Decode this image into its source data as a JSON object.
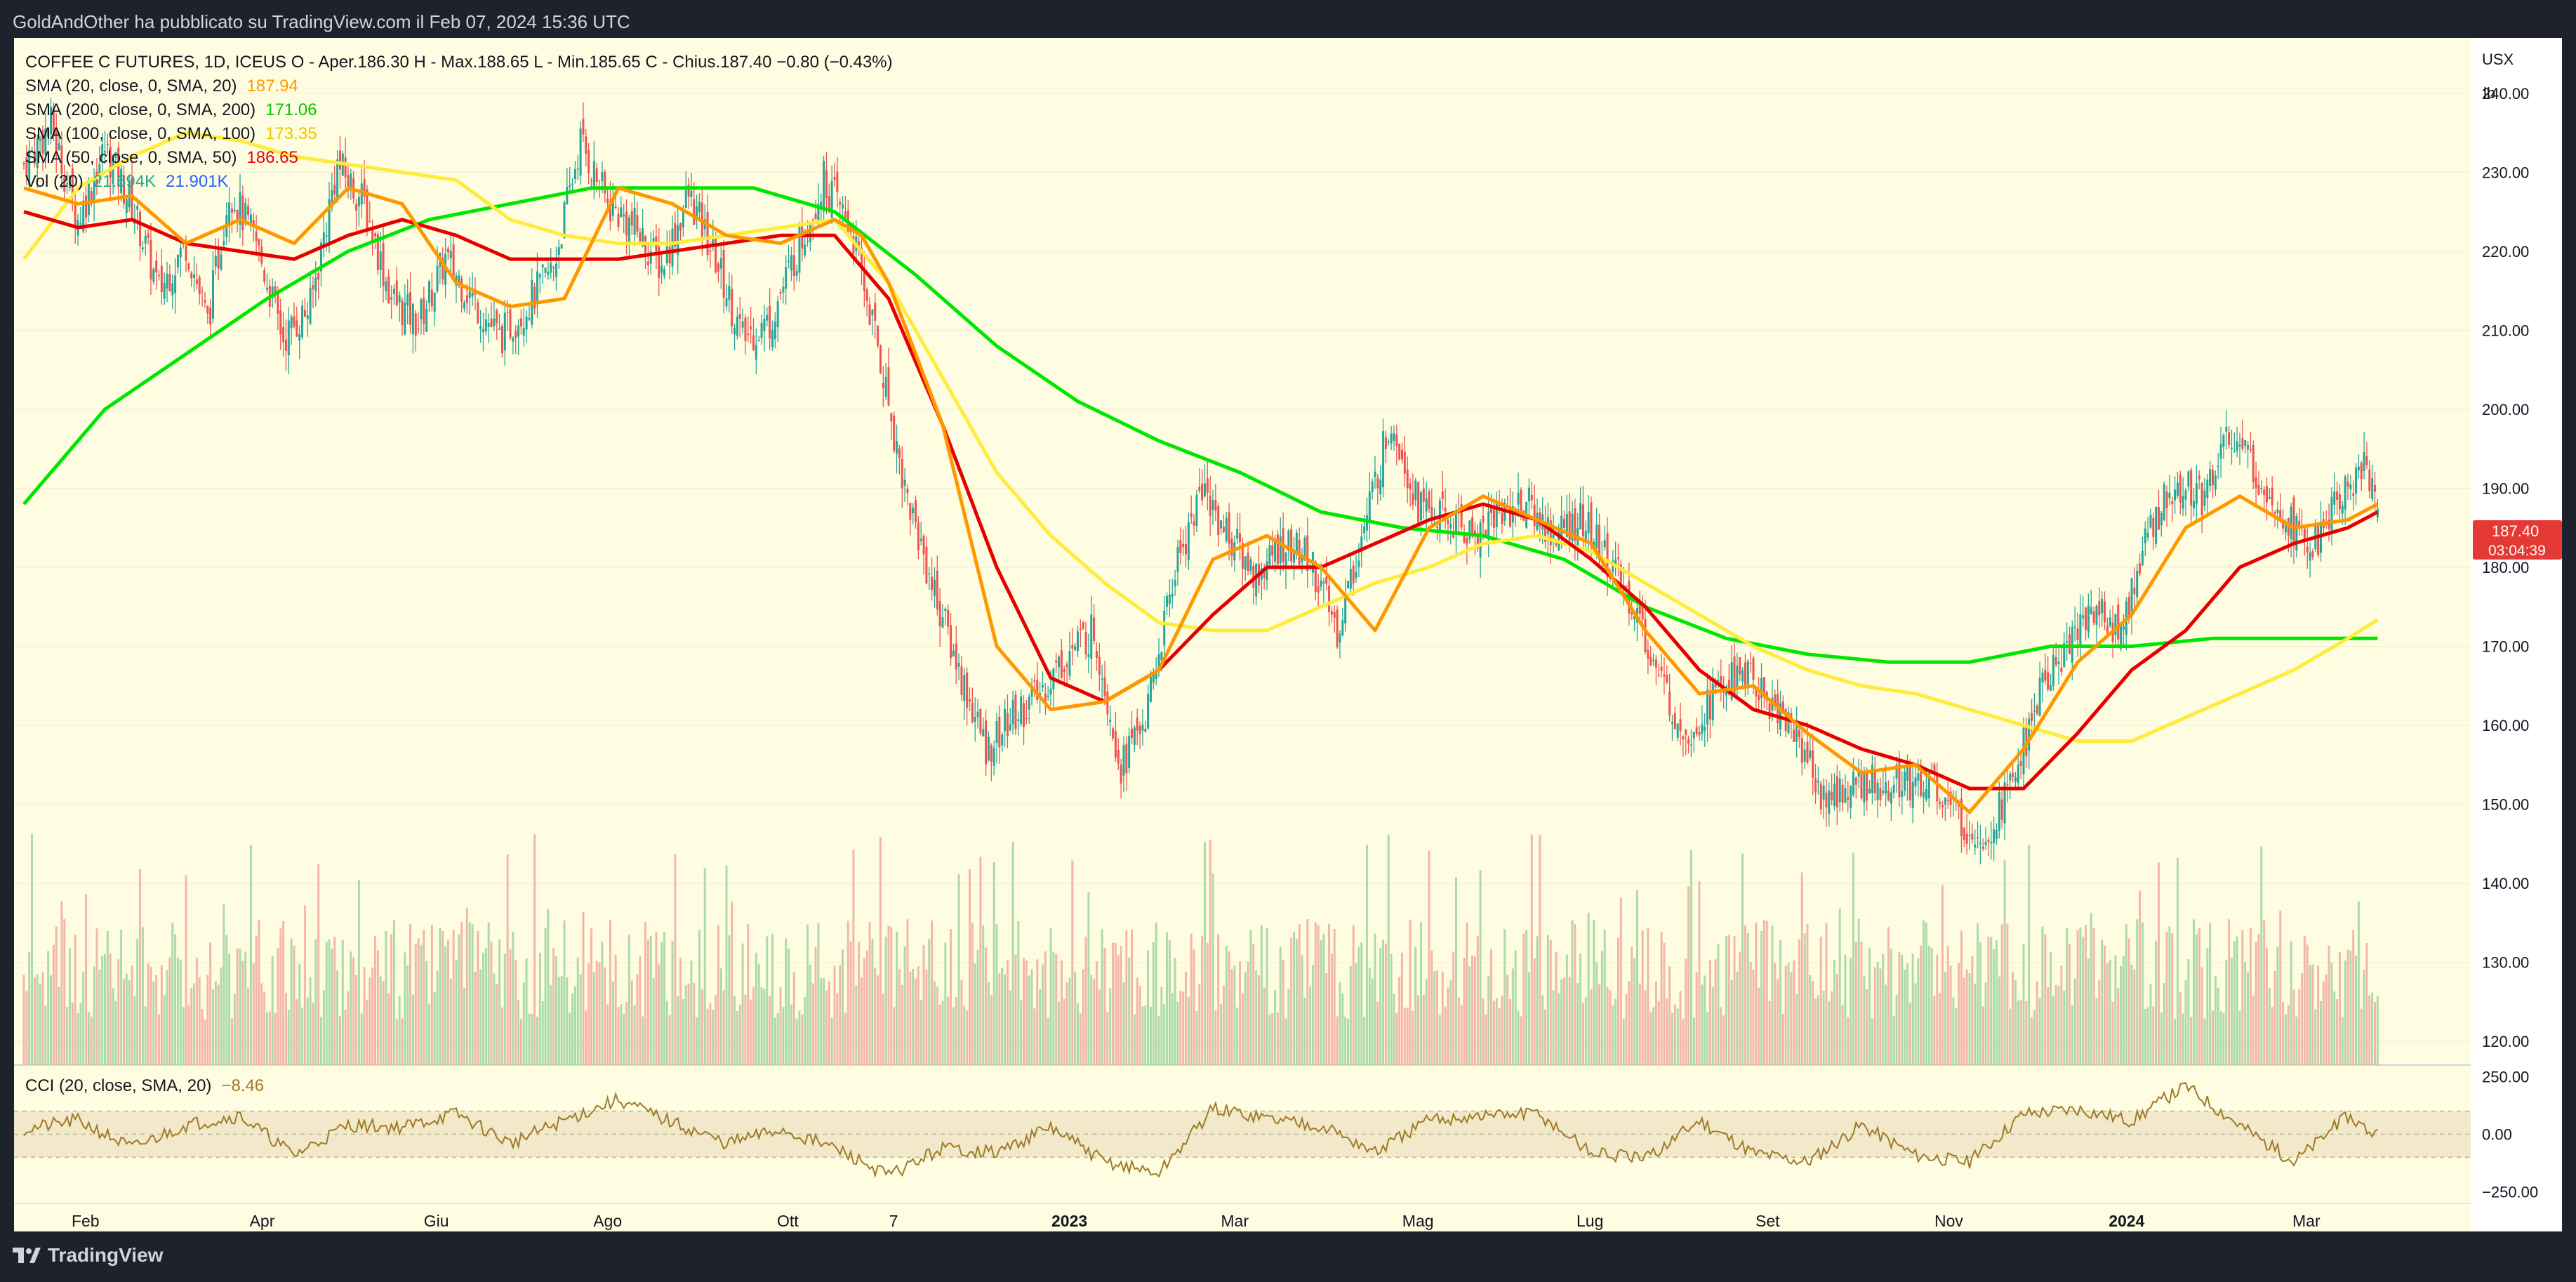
{
  "header": {
    "publish_line": "GoldAndOther ha pubblicato su TradingView.com il Feb 07, 2024 15:36 UTC"
  },
  "legend": {
    "symbol_line": "COFFEE C FUTURES, 1D, ICEUS  O - Aper.186.30  H - Max.188.65  L - Min.185.65  C - Chius.187.40  −0.80 (−0.43%)",
    "sma20": {
      "label": "SMA (20, close, 0, SMA, 20)",
      "value": "187.94",
      "color": "#ff9800"
    },
    "sma200": {
      "label": "SMA (200, close, 0, SMA, 200)",
      "value": "171.06",
      "color": "#00e600"
    },
    "sma100": {
      "label": "SMA (100, close, 0, SMA, 100)",
      "value": "173.35",
      "color": "#ffeb3b"
    },
    "sma50": {
      "label": "SMA (50, close, 0, SMA, 50)",
      "value": "186.65",
      "color": "#e60000"
    },
    "vol": {
      "label": "Vol (20)",
      "value1": "21.694K",
      "value2": "21.901K"
    }
  },
  "currency": {
    "unit": "USX",
    "sub": "lb"
  },
  "last_price": {
    "value": "187.40",
    "countdown": "03:04:39"
  },
  "cci_legend": {
    "label": "CCI (20, close, SMA, 20)",
    "value": "−8.46"
  },
  "footer": {
    "brand": "TradingView"
  },
  "chart_data": {
    "type": "candlestick",
    "instrument": "COFFEE C FUTURES",
    "interval": "1D",
    "exchange": "ICEUS",
    "price_ticks": [
      "240.00",
      "230.00",
      "220.00",
      "210.00",
      "200.00",
      "190.00",
      "180.00",
      "170.00",
      "160.00",
      "150.00",
      "140.00",
      "130.00",
      "120.00"
    ],
    "cci_ticks": [
      "250.00",
      "0.00",
      "−250.00"
    ],
    "x_tick_labels": [
      "Feb",
      "Apr",
      "Giu",
      "Ago",
      "Ott",
      "7",
      "2023",
      "Mar",
      "Mag",
      "Lug",
      "Set",
      "Nov",
      "2024",
      "Mar"
    ],
    "price_range": [
      117,
      247
    ],
    "cci_range": [
      -300,
      300
    ],
    "ohlc_last": {
      "open": 186.3,
      "high": 188.65,
      "low": 185.65,
      "close": 187.4,
      "change": -0.8,
      "change_pct": -0.43
    },
    "close_path_anchors": [
      [
        0,
        231
      ],
      [
        10,
        236
      ],
      [
        20,
        224
      ],
      [
        30,
        233
      ],
      [
        40,
        226
      ],
      [
        50,
        215
      ],
      [
        60,
        221
      ],
      [
        68,
        211
      ],
      [
        76,
        228
      ],
      [
        86,
        221
      ],
      [
        96,
        209
      ],
      [
        106,
        213
      ],
      [
        116,
        231
      ],
      [
        126,
        226
      ],
      [
        136,
        214
      ],
      [
        146,
        211
      ],
      [
        156,
        219
      ],
      [
        166,
        214
      ],
      [
        176,
        209
      ],
      [
        186,
        213
      ],
      [
        196,
        218
      ],
      [
        206,
        234
      ],
      [
        216,
        226
      ],
      [
        226,
        223
      ],
      [
        236,
        218
      ],
      [
        246,
        227
      ],
      [
        256,
        219
      ],
      [
        266,
        209
      ],
      [
        276,
        211
      ],
      [
        286,
        220
      ],
      [
        296,
        229
      ],
      [
        306,
        223
      ],
      [
        316,
        208
      ],
      [
        326,
        190
      ],
      [
        336,
        178
      ],
      [
        346,
        167
      ],
      [
        356,
        157
      ],
      [
        366,
        161
      ],
      [
        376,
        164
      ],
      [
        386,
        169
      ],
      [
        396,
        172
      ],
      [
        406,
        155
      ],
      [
        416,
        162
      ],
      [
        426,
        180
      ],
      [
        436,
        190
      ],
      [
        446,
        184
      ],
      [
        456,
        179
      ],
      [
        466,
        183
      ],
      [
        476,
        181
      ],
      [
        486,
        172
      ],
      [
        496,
        185
      ],
      [
        506,
        199
      ],
      [
        516,
        188
      ],
      [
        526,
        186
      ],
      [
        536,
        184
      ],
      [
        546,
        187
      ],
      [
        556,
        188
      ],
      [
        566,
        184
      ],
      [
        576,
        186
      ],
      [
        586,
        181
      ],
      [
        596,
        175
      ],
      [
        606,
        165
      ],
      [
        616,
        159
      ],
      [
        626,
        164
      ],
      [
        636,
        167
      ],
      [
        646,
        163
      ],
      [
        656,
        159
      ],
      [
        666,
        151
      ],
      [
        676,
        152
      ],
      [
        686,
        153
      ],
      [
        696,
        153
      ],
      [
        706,
        153
      ],
      [
        716,
        148
      ],
      [
        726,
        146
      ],
      [
        736,
        153
      ],
      [
        746,
        164
      ],
      [
        756,
        170
      ],
      [
        766,
        175
      ],
      [
        776,
        172
      ],
      [
        786,
        184
      ],
      [
        796,
        191
      ],
      [
        806,
        189
      ],
      [
        816,
        197
      ],
      [
        826,
        192
      ],
      [
        836,
        187
      ],
      [
        846,
        182
      ],
      [
        856,
        188
      ],
      [
        866,
        193
      ],
      [
        871,
        187.4
      ]
    ],
    "sma20_anchors": [
      [
        0,
        228
      ],
      [
        20,
        226
      ],
      [
        40,
        227
      ],
      [
        60,
        221
      ],
      [
        80,
        224
      ],
      [
        100,
        221
      ],
      [
        120,
        228
      ],
      [
        140,
        226
      ],
      [
        160,
        216
      ],
      [
        180,
        213
      ],
      [
        200,
        214
      ],
      [
        220,
        228
      ],
      [
        240,
        226
      ],
      [
        260,
        222
      ],
      [
        280,
        221
      ],
      [
        300,
        224
      ],
      [
        310,
        222
      ],
      [
        320,
        216
      ],
      [
        340,
        198
      ],
      [
        360,
        170
      ],
      [
        380,
        162
      ],
      [
        400,
        163
      ],
      [
        420,
        167
      ],
      [
        440,
        181
      ],
      [
        460,
        184
      ],
      [
        480,
        180
      ],
      [
        500,
        172
      ],
      [
        520,
        185
      ],
      [
        540,
        189
      ],
      [
        560,
        186
      ],
      [
        580,
        183
      ],
      [
        600,
        172
      ],
      [
        620,
        164
      ],
      [
        640,
        165
      ],
      [
        660,
        159
      ],
      [
        680,
        154
      ],
      [
        700,
        155
      ],
      [
        720,
        149
      ],
      [
        740,
        157
      ],
      [
        760,
        168
      ],
      [
        780,
        174
      ],
      [
        800,
        185
      ],
      [
        820,
        189
      ],
      [
        840,
        185
      ],
      [
        860,
        186
      ],
      [
        871,
        188
      ]
    ],
    "sma50_anchors": [
      [
        0,
        225
      ],
      [
        20,
        223
      ],
      [
        40,
        224
      ],
      [
        60,
        221
      ],
      [
        80,
        220
      ],
      [
        100,
        219
      ],
      [
        120,
        222
      ],
      [
        140,
        224
      ],
      [
        160,
        222
      ],
      [
        180,
        219
      ],
      [
        200,
        219
      ],
      [
        220,
        219
      ],
      [
        240,
        220
      ],
      [
        260,
        221
      ],
      [
        280,
        222
      ],
      [
        300,
        222
      ],
      [
        320,
        214
      ],
      [
        340,
        198
      ],
      [
        360,
        180
      ],
      [
        380,
        166
      ],
      [
        400,
        163
      ],
      [
        420,
        167
      ],
      [
        440,
        174
      ],
      [
        460,
        180
      ],
      [
        480,
        180
      ],
      [
        500,
        183
      ],
      [
        520,
        186
      ],
      [
        540,
        188
      ],
      [
        560,
        186
      ],
      [
        580,
        181
      ],
      [
        600,
        175
      ],
      [
        620,
        167
      ],
      [
        640,
        162
      ],
      [
        660,
        160
      ],
      [
        680,
        157
      ],
      [
        700,
        155
      ],
      [
        720,
        152
      ],
      [
        740,
        152
      ],
      [
        760,
        159
      ],
      [
        780,
        167
      ],
      [
        800,
        172
      ],
      [
        820,
        180
      ],
      [
        840,
        183
      ],
      [
        860,
        185
      ],
      [
        871,
        187
      ]
    ],
    "sma100_anchors": [
      [
        0,
        219
      ],
      [
        20,
        228
      ],
      [
        40,
        232
      ],
      [
        60,
        235
      ],
      [
        80,
        234
      ],
      [
        100,
        232
      ],
      [
        120,
        231
      ],
      [
        140,
        230
      ],
      [
        160,
        229
      ],
      [
        180,
        224
      ],
      [
        200,
        222
      ],
      [
        220,
        221
      ],
      [
        240,
        221
      ],
      [
        260,
        222
      ],
      [
        280,
        223
      ],
      [
        300,
        224
      ],
      [
        320,
        216
      ],
      [
        340,
        204
      ],
      [
        360,
        192
      ],
      [
        380,
        184
      ],
      [
        400,
        178
      ],
      [
        420,
        173
      ],
      [
        440,
        172
      ],
      [
        460,
        172
      ],
      [
        480,
        175
      ],
      [
        500,
        178
      ],
      [
        520,
        180
      ],
      [
        540,
        183
      ],
      [
        560,
        184
      ],
      [
        580,
        182
      ],
      [
        600,
        178
      ],
      [
        620,
        174
      ],
      [
        640,
        170
      ],
      [
        660,
        167
      ],
      [
        680,
        165
      ],
      [
        700,
        164
      ],
      [
        720,
        162
      ],
      [
        740,
        160
      ],
      [
        760,
        158
      ],
      [
        780,
        158
      ],
      [
        800,
        161
      ],
      [
        820,
        164
      ],
      [
        840,
        167
      ],
      [
        860,
        171
      ],
      [
        871,
        173.35
      ]
    ],
    "sma200_anchors": [
      [
        0,
        188
      ],
      [
        30,
        200
      ],
      [
        60,
        207
      ],
      [
        90,
        214
      ],
      [
        120,
        220
      ],
      [
        150,
        224
      ],
      [
        180,
        226
      ],
      [
        210,
        228
      ],
      [
        240,
        228
      ],
      [
        270,
        228
      ],
      [
        300,
        225
      ],
      [
        330,
        217
      ],
      [
        360,
        208
      ],
      [
        390,
        201
      ],
      [
        420,
        196
      ],
      [
        450,
        192
      ],
      [
        480,
        187
      ],
      [
        510,
        185
      ],
      [
        540,
        184
      ],
      [
        570,
        181
      ],
      [
        600,
        175
      ],
      [
        630,
        171
      ],
      [
        660,
        169
      ],
      [
        690,
        168
      ],
      [
        720,
        168
      ],
      [
        750,
        170
      ],
      [
        780,
        170
      ],
      [
        810,
        171
      ],
      [
        840,
        171
      ],
      [
        871,
        171
      ]
    ],
    "cci_anchors": [
      [
        0,
        20
      ],
      [
        20,
        60
      ],
      [
        40,
        -60
      ],
      [
        60,
        40
      ],
      [
        80,
        80
      ],
      [
        100,
        -90
      ],
      [
        120,
        40
      ],
      [
        140,
        30
      ],
      [
        160,
        90
      ],
      [
        180,
        -40
      ],
      [
        200,
        60
      ],
      [
        220,
        150
      ],
      [
        240,
        50
      ],
      [
        260,
        -40
      ],
      [
        280,
        20
      ],
      [
        300,
        -60
      ],
      [
        320,
        -180
      ],
      [
        340,
        -60
      ],
      [
        360,
        -80
      ],
      [
        380,
        30
      ],
      [
        400,
        -120
      ],
      [
        420,
        -170
      ],
      [
        440,
        110
      ],
      [
        460,
        70
      ],
      [
        480,
        40
      ],
      [
        500,
        -80
      ],
      [
        520,
        60
      ],
      [
        540,
        80
      ],
      [
        560,
        90
      ],
      [
        580,
        -80
      ],
      [
        600,
        -110
      ],
      [
        620,
        60
      ],
      [
        640,
        -80
      ],
      [
        660,
        -120
      ],
      [
        680,
        40
      ],
      [
        700,
        -90
      ],
      [
        720,
        -120
      ],
      [
        740,
        90
      ],
      [
        760,
        110
      ],
      [
        780,
        60
      ],
      [
        800,
        210
      ],
      [
        820,
        40
      ],
      [
        840,
        -120
      ],
      [
        860,
        80
      ],
      [
        871,
        -8.46
      ]
    ]
  }
}
